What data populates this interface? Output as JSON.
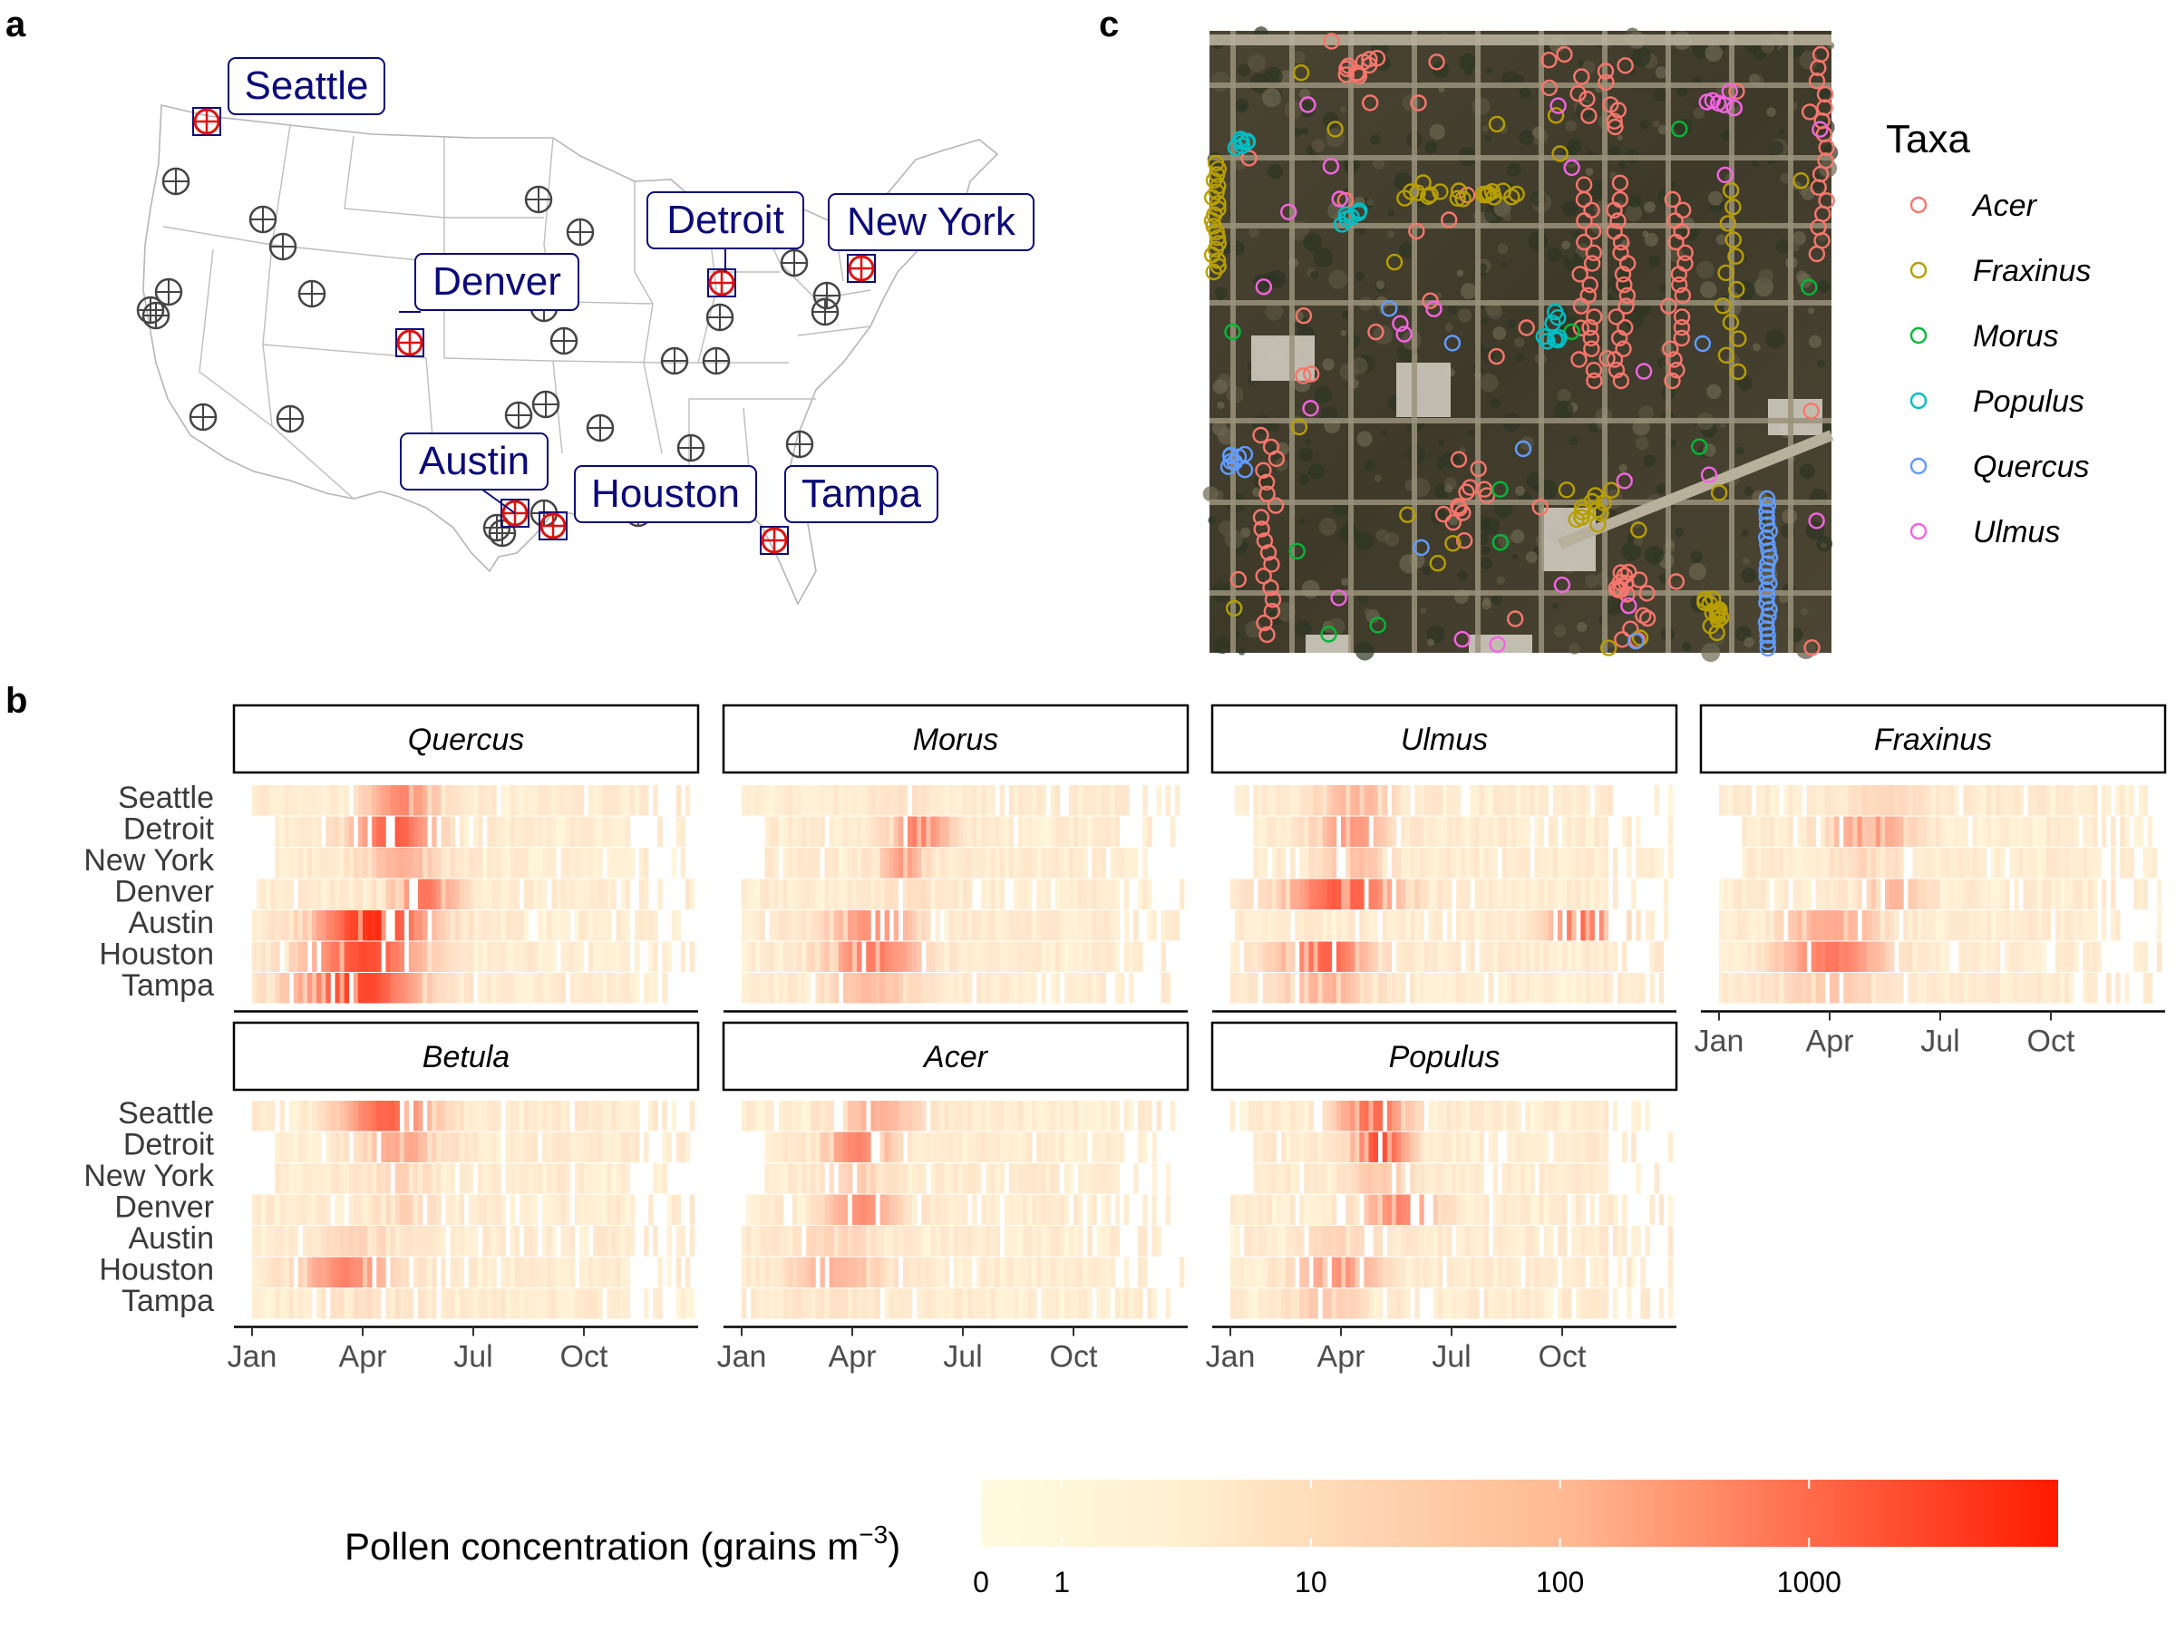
{
  "panel_labels": {
    "a": "a",
    "b": "b",
    "c": "c"
  },
  "colors": {
    "low": "#fffbe0",
    "high": "#ff1a00",
    "map_label": "#0a0a7a",
    "site_selected": "#e01010",
    "site_other": "#444444",
    "taxa": {
      "Acer": "#f8766d",
      "Fraxinus": "#b79f00",
      "Morus": "#00ba38",
      "Populus": "#00bfc4",
      "Quercus": "#619cff",
      "Ulmus": "#f564e3"
    }
  },
  "map": {
    "selected_sites": [
      "Seattle",
      "Detroit",
      "New York",
      "Denver",
      "Austin",
      "Houston",
      "Tampa"
    ]
  },
  "chart_data": [
    {
      "type": "heatmap",
      "title": "Pollen concentration (grains m⁻³)",
      "colorbar_label_main": "Pollen concentration (grains m",
      "colorbar_label_sup": "−3",
      "colorbar_label_end": ")",
      "colorbar_ticks": [
        "0",
        "1",
        "10",
        "100",
        "1000"
      ],
      "colorbar_tick_values": [
        0,
        1,
        10,
        100,
        1000
      ],
      "color_scale": "log",
      "cities": [
        "Seattle",
        "Detroit",
        "New York",
        "Denver",
        "Austin",
        "Houston",
        "Tampa"
      ],
      "month_ticks": [
        "Jan",
        "Apr",
        "Jul",
        "Oct"
      ],
      "facets": [
        {
          "taxon": "Quercus",
          "peaks": [
            [
              4.0,
              0.6,
              0.45
            ],
            [
              3.8,
              0.7,
              0.65
            ],
            [
              4.0,
              0.7,
              0.25
            ],
            [
              4.6,
              0.6,
              0.5
            ],
            [
              3.2,
              1.0,
              0.85
            ],
            [
              3.0,
              1.0,
              0.7
            ],
            [
              2.8,
              1.1,
              0.75
            ]
          ]
        },
        {
          "taxon": "Morus",
          "peaks": [
            [
              4.5,
              0.6,
              0.05
            ],
            [
              4.8,
              0.5,
              0.5
            ],
            [
              4.3,
              0.4,
              0.35
            ],
            [
              4.5,
              0.6,
              0.05
            ],
            [
              3.5,
              0.8,
              0.4
            ],
            [
              3.5,
              0.8,
              0.5
            ],
            [
              3.5,
              0.8,
              0.2
            ]
          ]
        },
        {
          "taxon": "Ulmus",
          "peaks": [
            [
              3.3,
              0.7,
              0.25
            ],
            [
              3.2,
              0.6,
              0.4
            ],
            [
              3.3,
              0.6,
              0.2
            ],
            [
              3.0,
              1.0,
              0.65
            ],
            [
              9.5,
              0.6,
              0.55
            ],
            [
              2.5,
              0.8,
              0.6
            ],
            [
              2.5,
              0.8,
              0.25
            ]
          ]
        },
        {
          "taxon": "Fraxinus",
          "peaks": [
            [
              4.5,
              0.6,
              0.1
            ],
            [
              4.0,
              0.7,
              0.4
            ],
            [
              4.0,
              0.6,
              0.1
            ],
            [
              4.7,
              0.5,
              0.25
            ],
            [
              3.0,
              0.9,
              0.3
            ],
            [
              3.0,
              0.9,
              0.5
            ],
            [
              3.0,
              0.9,
              0.15
            ]
          ]
        },
        {
          "taxon": "Betula",
          "peaks": [
            [
              3.6,
              0.8,
              0.6
            ],
            [
              4.0,
              0.7,
              0.3
            ],
            [
              4.0,
              0.6,
              0.1
            ],
            [
              4.2,
              0.6,
              0.1
            ],
            [
              3.0,
              0.8,
              0.1
            ],
            [
              2.5,
              0.8,
              0.45
            ],
            [
              3.0,
              0.8,
              0.05
            ]
          ]
        },
        {
          "taxon": "Acer",
          "peaks": [
            [
              3.6,
              0.7,
              0.25
            ],
            [
              3.1,
              0.6,
              0.45
            ],
            [
              3.2,
              0.6,
              0.15
            ],
            [
              3.2,
              0.6,
              0.4
            ],
            [
              2.5,
              0.8,
              0.1
            ],
            [
              2.5,
              0.8,
              0.25
            ],
            [
              2.5,
              0.8,
              0.05
            ]
          ]
        },
        {
          "taxon": "Populus",
          "peaks": [
            [
              3.8,
              0.6,
              0.6
            ],
            [
              4.0,
              0.5,
              0.7
            ],
            [
              4.0,
              0.6,
              0.15
            ],
            [
              4.5,
              0.6,
              0.45
            ],
            [
              3.0,
              0.7,
              0.1
            ],
            [
              2.9,
              0.7,
              0.4
            ],
            [
              2.5,
              0.8,
              0.15
            ]
          ]
        }
      ]
    },
    {
      "type": "scatter",
      "legend_title": "Taxa",
      "legend_position": "right",
      "series": [
        {
          "name": "Acer"
        },
        {
          "name": "Fraxinus"
        },
        {
          "name": "Morus"
        },
        {
          "name": "Populus"
        },
        {
          "name": "Quercus"
        },
        {
          "name": "Ulmus"
        }
      ]
    }
  ]
}
